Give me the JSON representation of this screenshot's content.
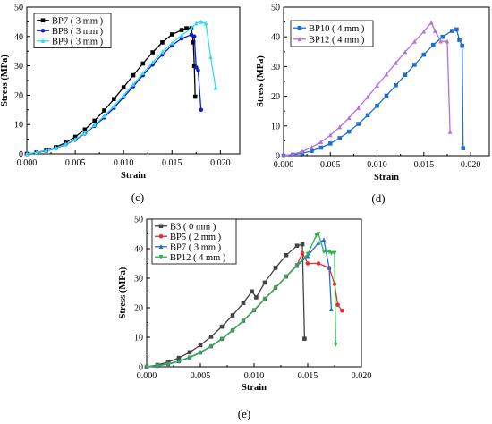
{
  "chart_data": [
    {
      "panel": "(c)",
      "type": "line",
      "xlabel": "Strain",
      "ylabel": "Stress (MPa)",
      "xlim": [
        0,
        0.022
      ],
      "ylim": [
        0,
        50
      ],
      "x_ticks": [
        "0.000",
        "0.005",
        "0.010",
        "0.015",
        "0.020"
      ],
      "y_ticks": [
        "0",
        "10",
        "20",
        "30",
        "40",
        "50"
      ],
      "legend_position": "top-left",
      "series": [
        {
          "name": "BP7 ( 3 mm )",
          "color": "#000000",
          "marker": "square",
          "x": [
            0,
            0.001,
            0.002,
            0.003,
            0.004,
            0.005,
            0.006,
            0.007,
            0.008,
            0.009,
            0.01,
            0.011,
            0.012,
            0.013,
            0.014,
            0.015,
            0.016,
            0.0165,
            0.017,
            0.0172,
            0.0173,
            0.0174
          ],
          "y": [
            0,
            0.5,
            1.2,
            2.3,
            3.8,
            5.8,
            8.3,
            11.3,
            14.8,
            18.7,
            22.7,
            26.8,
            30.8,
            34.6,
            38,
            40.7,
            42.2,
            42.8,
            42.8,
            38,
            30,
            19.5
          ]
        },
        {
          "name": "BP8 ( 3 mm )",
          "color": "#1020c0",
          "marker": "circle",
          "x": [
            0,
            0.001,
            0.002,
            0.003,
            0.004,
            0.005,
            0.006,
            0.007,
            0.008,
            0.009,
            0.01,
            0.011,
            0.012,
            0.013,
            0.014,
            0.015,
            0.016,
            0.017,
            0.0173,
            0.0175,
            0.0177,
            0.018
          ],
          "y": [
            0,
            0.4,
            1,
            1.9,
            3.2,
            4.8,
            6.9,
            9.5,
            12.4,
            15.7,
            19.3,
            23,
            26.8,
            30.4,
            33.8,
            37,
            39.3,
            40.6,
            40,
            29.5,
            28.5,
            15
          ]
        },
        {
          "name": "BP9 ( 3 mm )",
          "color": "#33dcf0",
          "marker": "triangle",
          "x": [
            0,
            0.001,
            0.002,
            0.003,
            0.004,
            0.005,
            0.006,
            0.007,
            0.008,
            0.009,
            0.01,
            0.011,
            0.012,
            0.013,
            0.014,
            0.015,
            0.016,
            0.017,
            0.0175,
            0.018,
            0.0185,
            0.019,
            0.0195
          ],
          "y": [
            0,
            0.5,
            1.1,
            2,
            3.3,
            5,
            7.1,
            9.8,
            12.9,
            16.3,
            19.9,
            23.7,
            27.5,
            31.2,
            34.7,
            37.8,
            40.4,
            42.8,
            44.5,
            45,
            44.5,
            33,
            22.5
          ]
        }
      ]
    },
    {
      "panel": "(d)",
      "type": "line",
      "xlabel": "Strain",
      "ylabel": "Stress (MPa)",
      "xlim": [
        0,
        0.022
      ],
      "ylim": [
        0,
        50
      ],
      "x_ticks": [
        "0.000",
        "0.005",
        "0.010",
        "0.015",
        "0.020"
      ],
      "y_ticks": [
        "0",
        "10",
        "20",
        "30",
        "40",
        "50"
      ],
      "legend_position": "top-left",
      "series": [
        {
          "name": "BP10 ( 4 mm )",
          "color": "#1f6fd0",
          "marker": "square",
          "x": [
            0,
            0.001,
            0.002,
            0.003,
            0.004,
            0.005,
            0.006,
            0.007,
            0.008,
            0.009,
            0.01,
            0.011,
            0.012,
            0.013,
            0.014,
            0.015,
            0.016,
            0.017,
            0.018,
            0.0185,
            0.0188,
            0.0191,
            0.0192
          ],
          "y": [
            0,
            0.3,
            0.8,
            1.6,
            2.7,
            4.1,
            5.9,
            8.1,
            10.7,
            13.6,
            16.8,
            20.2,
            23.7,
            27.2,
            30.6,
            34,
            37.3,
            40,
            42,
            42.5,
            39,
            37,
            2.5
          ]
        },
        {
          "name": "BP12 ( 4 mm )",
          "color": "#b070e0",
          "marker": "triangle",
          "x": [
            0,
            0.001,
            0.002,
            0.003,
            0.004,
            0.005,
            0.006,
            0.007,
            0.008,
            0.009,
            0.01,
            0.011,
            0.012,
            0.013,
            0.014,
            0.015,
            0.0158,
            0.0162,
            0.0168,
            0.0175,
            0.0178
          ],
          "y": [
            0,
            0.5,
            1.4,
            2.8,
            4.6,
            6.9,
            9.6,
            12.7,
            16.1,
            19.8,
            23.6,
            27.4,
            31.2,
            34.9,
            38.4,
            41.8,
            44.8,
            42,
            38.5,
            38.5,
            8
          ]
        }
      ]
    },
    {
      "panel": "(e)",
      "type": "line",
      "xlabel": "Strain",
      "ylabel": "Stress (MPa)",
      "xlim": [
        0,
        0.02
      ],
      "ylim": [
        0,
        50
      ],
      "x_ticks": [
        "0.000",
        "0.005",
        "0.010",
        "0.015",
        "0.020"
      ],
      "y_ticks": [
        "0",
        "10",
        "20",
        "30",
        "40",
        "50"
      ],
      "legend_position": "top-left",
      "series": [
        {
          "name": "B3 ( 0 mm )",
          "color": "#444444",
          "marker": "square",
          "x": [
            0,
            0.001,
            0.002,
            0.003,
            0.004,
            0.005,
            0.006,
            0.007,
            0.008,
            0.009,
            0.0098,
            0.0102,
            0.011,
            0.012,
            0.013,
            0.014,
            0.0145,
            0.0147
          ],
          "y": [
            0,
            0.6,
            1.6,
            3,
            4.9,
            7.3,
            10.2,
            13.6,
            17.4,
            21.6,
            25.5,
            23.5,
            28.5,
            33.5,
            37.8,
            41,
            41.5,
            9.5
          ]
        },
        {
          "name": "BP5 ( 2 mm )",
          "color": "#e03030",
          "marker": "circle",
          "x": [
            0,
            0.001,
            0.002,
            0.003,
            0.004,
            0.005,
            0.006,
            0.007,
            0.008,
            0.009,
            0.01,
            0.011,
            0.012,
            0.013,
            0.014,
            0.0145,
            0.015,
            0.016,
            0.017,
            0.0175,
            0.0178,
            0.0182
          ],
          "y": [
            0,
            0.3,
            0.9,
            1.8,
            3.1,
            4.8,
            6.9,
            9.4,
            12.3,
            15.6,
            19.1,
            22.9,
            26.7,
            30.6,
            34.5,
            38.5,
            35,
            35,
            33.5,
            28,
            21,
            19
          ]
        },
        {
          "name": "BP7 ( 3 mm )",
          "color": "#1f6fd0",
          "marker": "triangle",
          "x": [
            0,
            0.001,
            0.002,
            0.003,
            0.004,
            0.005,
            0.006,
            0.007,
            0.008,
            0.009,
            0.01,
            0.011,
            0.012,
            0.013,
            0.014,
            0.015,
            0.016,
            0.0165,
            0.017,
            0.0172
          ],
          "y": [
            0,
            0.4,
            1,
            1.9,
            3.2,
            4.9,
            7,
            9.5,
            12.4,
            15.6,
            19.2,
            23,
            26.8,
            30.6,
            34.2,
            37.5,
            42,
            43,
            33.5,
            19.5
          ]
        },
        {
          "name": "BP12 ( 4 mm )",
          "color": "#30b050",
          "marker": "triangle-down",
          "x": [
            0,
            0.001,
            0.002,
            0.003,
            0.004,
            0.005,
            0.006,
            0.007,
            0.008,
            0.009,
            0.01,
            0.011,
            0.012,
            0.013,
            0.014,
            0.015,
            0.0158,
            0.016,
            0.0165,
            0.017,
            0.0172,
            0.0175,
            0.0176
          ],
          "y": [
            0,
            0.3,
            0.9,
            1.8,
            3.1,
            4.8,
            6.9,
            9.4,
            12.3,
            15.6,
            19.2,
            23,
            26.8,
            30.6,
            34.4,
            38.2,
            44.5,
            45,
            39,
            39,
            38.5,
            38.5,
            7.5
          ]
        }
      ]
    }
  ]
}
